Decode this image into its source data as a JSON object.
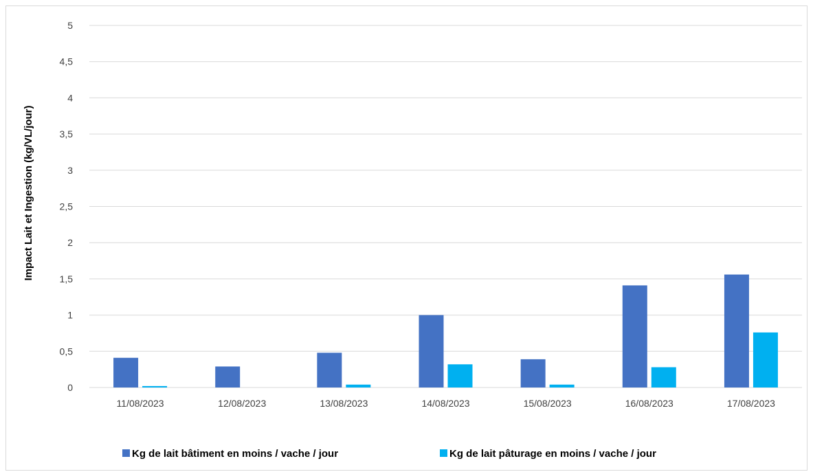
{
  "chart_data": {
    "type": "bar",
    "title": "",
    "xlabel": "",
    "ylabel": "Impact Lait et Ingestion (kg/VL/jour)",
    "ylim": [
      0,
      5
    ],
    "yticks": [
      "0",
      "0,5",
      "1",
      "1,5",
      "2",
      "2,5",
      "3",
      "3,5",
      "4",
      "4,5",
      "5"
    ],
    "ytick_values": [
      0,
      0.5,
      1,
      1.5,
      2,
      2.5,
      3,
      3.5,
      4,
      4.5,
      5
    ],
    "grid": true,
    "legend_position": "bottom",
    "categories": [
      "11/08/2023",
      "12/08/2023",
      "13/08/2023",
      "14/08/2023",
      "15/08/2023",
      "16/08/2023",
      "17/08/2023"
    ],
    "series": [
      {
        "name": "Kg de lait bâtiment en moins / vache / jour",
        "color": "#4472c4",
        "values": [
          0.41,
          0.29,
          0.48,
          1.0,
          0.39,
          1.41,
          1.56
        ]
      },
      {
        "name": "Kg de lait pâturage en moins / vache / jour",
        "color": "#00b0f0",
        "values": [
          0.02,
          0.0,
          0.04,
          0.32,
          0.04,
          0.28,
          0.76
        ]
      }
    ]
  }
}
